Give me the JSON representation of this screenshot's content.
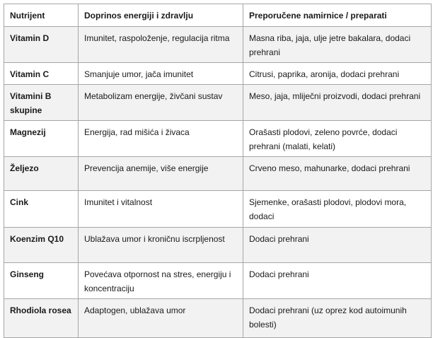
{
  "table": {
    "headers": [
      "Nutrijent",
      "Doprinos energiji i zdravlju",
      "Preporučene namirnice / preparati"
    ],
    "rows": [
      {
        "nutrient": "Vitamin D",
        "benefit": "Imunitet, raspoloženje, regulacija ritma",
        "sources": "Masna riba, jaja, ulje jetre bakalara, dodaci prehrani"
      },
      {
        "nutrient": "Vitamin C",
        "benefit": "Smanjuje umor, jača imunitet",
        "sources": "Citrusi, paprika, aronija,  dodaci prehrani"
      },
      {
        "nutrient": "Vitamini B skupine",
        "benefit": "Metabolizam energije, živčani sustav",
        "sources": "Meso, jaja, mliječni proizvodi, dodaci prehrani"
      },
      {
        "nutrient": "Magnezij",
        "benefit": "Energija, rad mišića i živaca",
        "sources": "Orašasti plodovi, zeleno povrće, dodaci prehrani (malati, kelati)"
      },
      {
        "nutrient": "Željezo",
        "benefit": "Prevencija anemije, više energije",
        "sources": "Crveno meso, mahunarke, dodaci prehrani"
      },
      {
        "nutrient": "Cink",
        "benefit": "Imunitet i vitalnost",
        "sources": "Sjemenke, orašasti plodovi, plodovi mora, dodaci"
      },
      {
        "nutrient": "Koenzim Q10",
        "benefit": "Ublažava umor i kroničnu iscrpljenost",
        "sources": "Dodaci prehrani"
      },
      {
        "nutrient": "Ginseng",
        "benefit": "Povećava otpornost na stres, energiju i koncentraciju",
        "sources": "Dodaci prehrani"
      },
      {
        "nutrient": "Rhodiola rosea",
        "benefit": "Adaptogen, ublažava umor",
        "sources": "Dodaci prehrani (uz oprez kod autoimunih bolesti)"
      }
    ],
    "shade_color": "#f2f2f2",
    "border_color": "#a6a6a6"
  }
}
